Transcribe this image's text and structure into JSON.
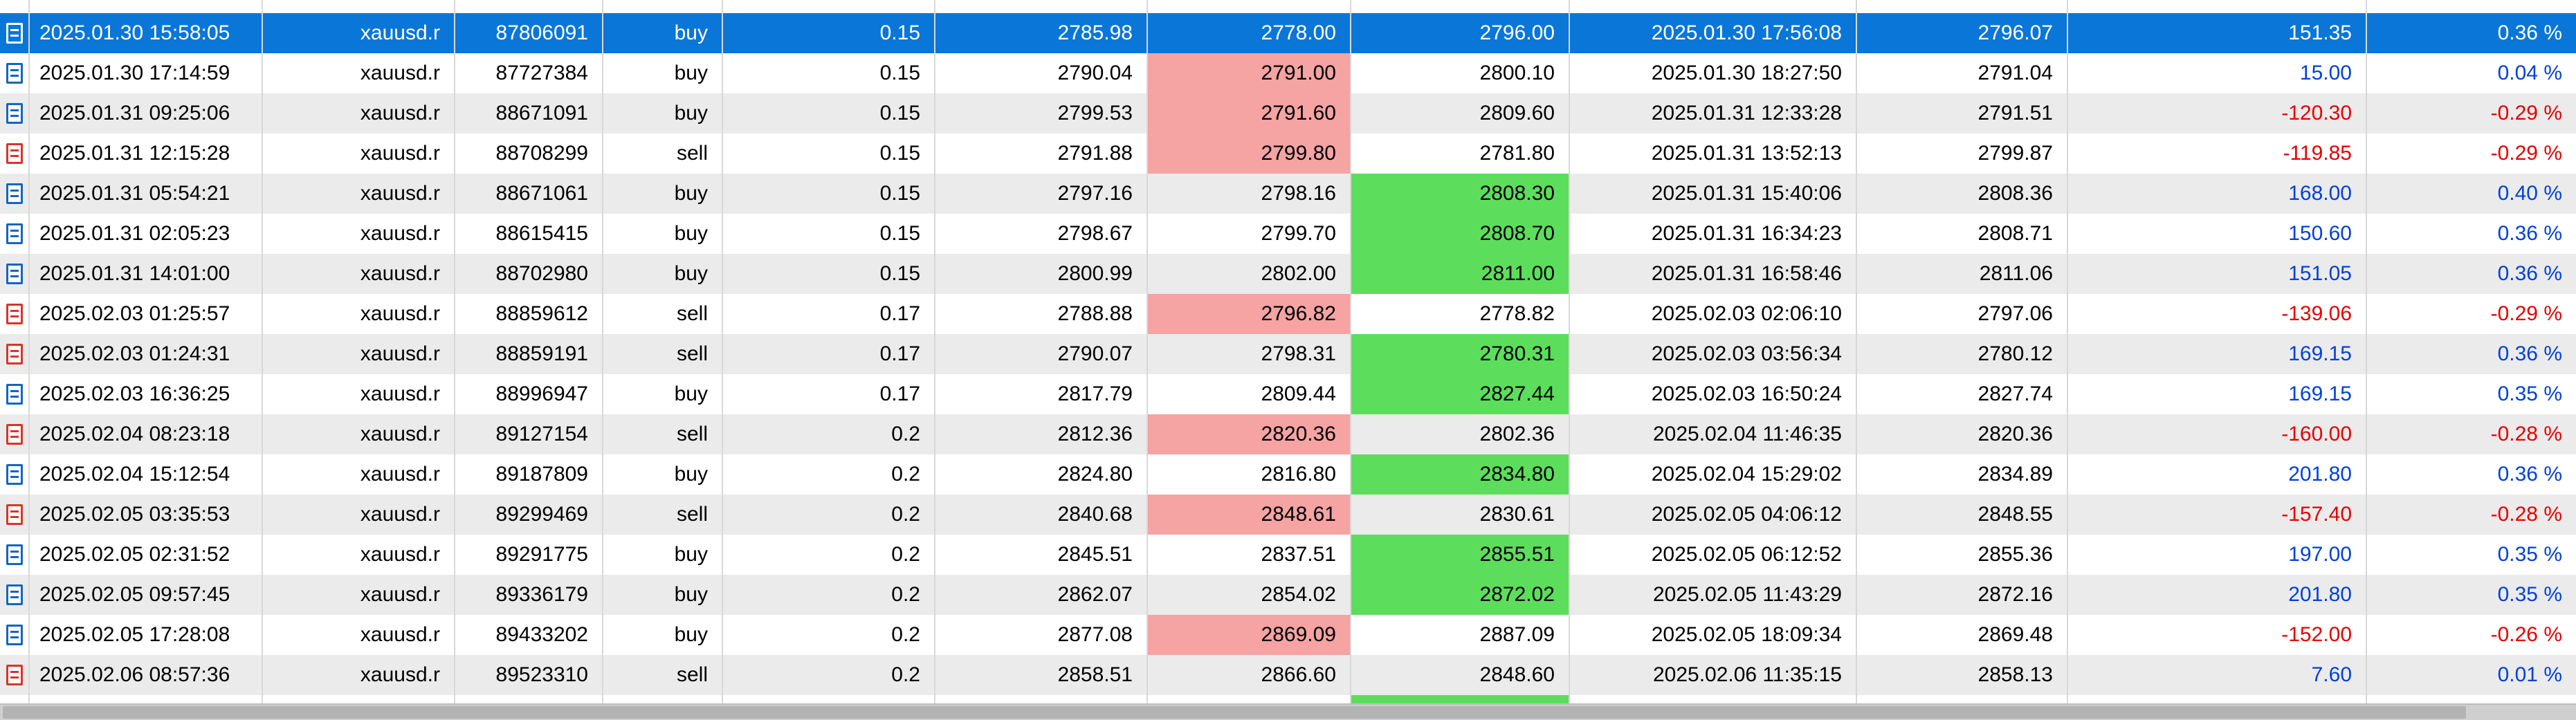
{
  "colors": {
    "selection_blue": "#0a76d8",
    "row_alt_gray": "#ebebeb",
    "sl_hit_pink": "#f5a3a3",
    "tp_hit_green": "#5cde5c",
    "profit_positive_blue": "#0040dd",
    "profit_negative_red": "#e60000",
    "buy_icon_blue": "#1565c0",
    "sell_icon_red": "#d9342b"
  },
  "table": {
    "rows": [
      {
        "selected": true,
        "type": "buy",
        "open_time": "2025.01.30 15:58:05",
        "symbol": "xauusd.r",
        "ticket": "87806091",
        "volume": "0.15",
        "open_price": "2785.98",
        "sl": "2778.00",
        "tp": "2796.00",
        "close_time": "2025.01.30 17:56:08",
        "close_price": "2796.07",
        "profit": "151.35",
        "percent": "0.36 %",
        "highlight": null
      },
      {
        "selected": false,
        "type": "buy",
        "open_time": "2025.01.30 17:14:59",
        "symbol": "xauusd.r",
        "ticket": "87727384",
        "volume": "0.15",
        "open_price": "2790.04",
        "sl": "2791.00",
        "tp": "2800.10",
        "close_time": "2025.01.30 18:27:50",
        "close_price": "2791.04",
        "profit": "15.00",
        "percent": "0.04 %",
        "highlight": "sl"
      },
      {
        "selected": false,
        "type": "buy",
        "open_time": "2025.01.31 09:25:06",
        "symbol": "xauusd.r",
        "ticket": "88671091",
        "volume": "0.15",
        "open_price": "2799.53",
        "sl": "2791.60",
        "tp": "2809.60",
        "close_time": "2025.01.31 12:33:28",
        "close_price": "2791.51",
        "profit": "-120.30",
        "percent": "-0.29 %",
        "highlight": "sl"
      },
      {
        "selected": false,
        "type": "sell",
        "open_time": "2025.01.31 12:15:28",
        "symbol": "xauusd.r",
        "ticket": "88708299",
        "volume": "0.15",
        "open_price": "2791.88",
        "sl": "2799.80",
        "tp": "2781.80",
        "close_time": "2025.01.31 13:52:13",
        "close_price": "2799.87",
        "profit": "-119.85",
        "percent": "-0.29 %",
        "highlight": "sl"
      },
      {
        "selected": false,
        "type": "buy",
        "open_time": "2025.01.31 05:54:21",
        "symbol": "xauusd.r",
        "ticket": "88671061",
        "volume": "0.15",
        "open_price": "2797.16",
        "sl": "2798.16",
        "tp": "2808.30",
        "close_time": "2025.01.31 15:40:06",
        "close_price": "2808.36",
        "profit": "168.00",
        "percent": "0.40 %",
        "highlight": "tp"
      },
      {
        "selected": false,
        "type": "buy",
        "open_time": "2025.01.31 02:05:23",
        "symbol": "xauusd.r",
        "ticket": "88615415",
        "volume": "0.15",
        "open_price": "2798.67",
        "sl": "2799.70",
        "tp": "2808.70",
        "close_time": "2025.01.31 16:34:23",
        "close_price": "2808.71",
        "profit": "150.60",
        "percent": "0.36 %",
        "highlight": "tp"
      },
      {
        "selected": false,
        "type": "buy",
        "open_time": "2025.01.31 14:01:00",
        "symbol": "xauusd.r",
        "ticket": "88702980",
        "volume": "0.15",
        "open_price": "2800.99",
        "sl": "2802.00",
        "tp": "2811.00",
        "close_time": "2025.01.31 16:58:46",
        "close_price": "2811.06",
        "profit": "151.05",
        "percent": "0.36 %",
        "highlight": "tp"
      },
      {
        "selected": false,
        "type": "sell",
        "open_time": "2025.02.03 01:25:57",
        "symbol": "xauusd.r",
        "ticket": "88859612",
        "volume": "0.17",
        "open_price": "2788.88",
        "sl": "2796.82",
        "tp": "2778.82",
        "close_time": "2025.02.03 02:06:10",
        "close_price": "2797.06",
        "profit": "-139.06",
        "percent": "-0.29 %",
        "highlight": "sl"
      },
      {
        "selected": false,
        "type": "sell",
        "open_time": "2025.02.03 01:24:31",
        "symbol": "xauusd.r",
        "ticket": "88859191",
        "volume": "0.17",
        "open_price": "2790.07",
        "sl": "2798.31",
        "tp": "2780.31",
        "close_time": "2025.02.03 03:56:34",
        "close_price": "2780.12",
        "profit": "169.15",
        "percent": "0.36 %",
        "highlight": "tp"
      },
      {
        "selected": false,
        "type": "buy",
        "open_time": "2025.02.03 16:36:25",
        "symbol": "xauusd.r",
        "ticket": "88996947",
        "volume": "0.17",
        "open_price": "2817.79",
        "sl": "2809.44",
        "tp": "2827.44",
        "close_time": "2025.02.03 16:50:24",
        "close_price": "2827.74",
        "profit": "169.15",
        "percent": "0.35 %",
        "highlight": "tp"
      },
      {
        "selected": false,
        "type": "sell",
        "open_time": "2025.02.04 08:23:18",
        "symbol": "xauusd.r",
        "ticket": "89127154",
        "volume": "0.2",
        "open_price": "2812.36",
        "sl": "2820.36",
        "tp": "2802.36",
        "close_time": "2025.02.04 11:46:35",
        "close_price": "2820.36",
        "profit": "-160.00",
        "percent": "-0.28 %",
        "highlight": "sl"
      },
      {
        "selected": false,
        "type": "buy",
        "open_time": "2025.02.04 15:12:54",
        "symbol": "xauusd.r",
        "ticket": "89187809",
        "volume": "0.2",
        "open_price": "2824.80",
        "sl": "2816.80",
        "tp": "2834.80",
        "close_time": "2025.02.04 15:29:02",
        "close_price": "2834.89",
        "profit": "201.80",
        "percent": "0.36 %",
        "highlight": "tp"
      },
      {
        "selected": false,
        "type": "sell",
        "open_time": "2025.02.05 03:35:53",
        "symbol": "xauusd.r",
        "ticket": "89299469",
        "volume": "0.2",
        "open_price": "2840.68",
        "sl": "2848.61",
        "tp": "2830.61",
        "close_time": "2025.02.05 04:06:12",
        "close_price": "2848.55",
        "profit": "-157.40",
        "percent": "-0.28 %",
        "highlight": "sl"
      },
      {
        "selected": false,
        "type": "buy",
        "open_time": "2025.02.05 02:31:52",
        "symbol": "xauusd.r",
        "ticket": "89291775",
        "volume": "0.2",
        "open_price": "2845.51",
        "sl": "2837.51",
        "tp": "2855.51",
        "close_time": "2025.02.05 06:12:52",
        "close_price": "2855.36",
        "profit": "197.00",
        "percent": "0.35 %",
        "highlight": "tp"
      },
      {
        "selected": false,
        "type": "buy",
        "open_time": "2025.02.05 09:57:45",
        "symbol": "xauusd.r",
        "ticket": "89336179",
        "volume": "0.2",
        "open_price": "2862.07",
        "sl": "2854.02",
        "tp": "2872.02",
        "close_time": "2025.02.05 11:43:29",
        "close_price": "2872.16",
        "profit": "201.80",
        "percent": "0.35 %",
        "highlight": "tp"
      },
      {
        "selected": false,
        "type": "buy",
        "open_time": "2025.02.05 17:28:08",
        "symbol": "xauusd.r",
        "ticket": "89433202",
        "volume": "0.2",
        "open_price": "2877.08",
        "sl": "2869.09",
        "tp": "2887.09",
        "close_time": "2025.02.05 18:09:34",
        "close_price": "2869.48",
        "profit": "-152.00",
        "percent": "-0.26 %",
        "highlight": "sl"
      },
      {
        "selected": false,
        "type": "sell",
        "open_time": "2025.02.06 08:57:36",
        "symbol": "xauusd.r",
        "ticket": "89523310",
        "volume": "0.2",
        "open_price": "2858.51",
        "sl": "2866.60",
        "tp": "2848.60",
        "close_time": "2025.02.06 11:35:15",
        "close_price": "2858.13",
        "profit": "7.60",
        "percent": "0.01 %",
        "highlight": null
      }
    ],
    "partial_bottom_row": {
      "tp_highlight": true
    }
  }
}
